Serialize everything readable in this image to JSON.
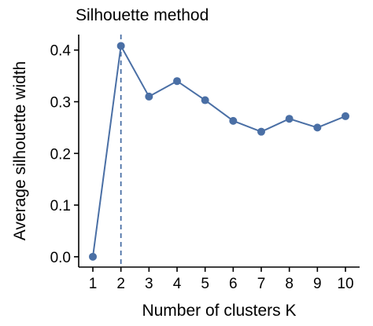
{
  "chart_data": {
    "type": "line",
    "title": "Silhouette method",
    "xlabel": "Number of clusters K",
    "ylabel": "Average silhouette width",
    "x": [
      "1",
      "2",
      "3",
      "4",
      "5",
      "6",
      "7",
      "8",
      "9",
      "10"
    ],
    "series": [
      {
        "values": [
          0.0,
          0.408,
          0.31,
          0.34,
          0.303,
          0.263,
          0.242,
          0.267,
          0.25,
          0.272
        ]
      }
    ],
    "yticks": [
      "0.0",
      "0.1",
      "0.2",
      "0.3",
      "0.4"
    ],
    "ylim": [
      -0.02,
      0.43
    ],
    "optimal_k": "2",
    "grid": false,
    "legend": "none",
    "colors": {
      "series": "#4a6fa5",
      "axis": "#000000"
    }
  }
}
